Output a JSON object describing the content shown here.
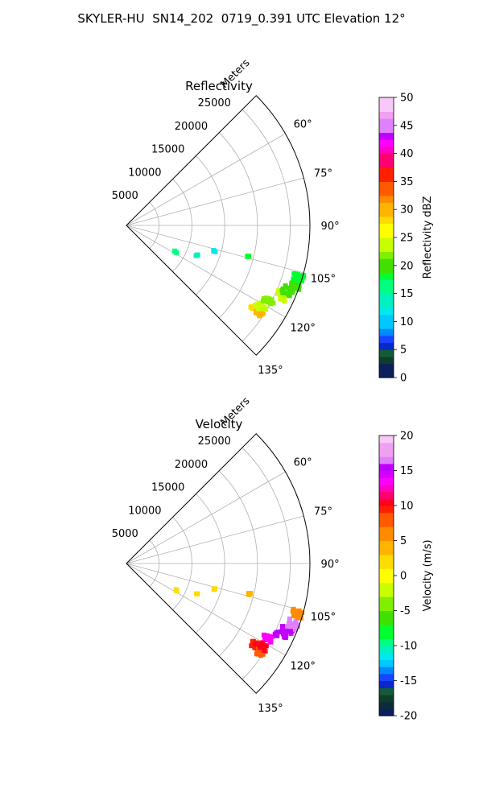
{
  "title": "SKYLER-HU  SN14_202  0719_0.391 UTC Elevation 12°",
  "chart_data": [
    {
      "type": "polar-sector",
      "title": "Reflectivity",
      "radial_label": "Meters",
      "radial_ticks": [
        "5000",
        "10000",
        "15000",
        "20000",
        "25000"
      ],
      "angle_ticks": [
        "60°",
        "75°",
        "90°",
        "105°",
        "120°",
        "135°"
      ],
      "azimuth_range": [
        45,
        135
      ],
      "range_max": 28000,
      "colorbar": {
        "label": "Reflectivity dBZ",
        "min": 0,
        "max": 50,
        "ticks": [
          "0",
          "5",
          "10",
          "15",
          "20",
          "25",
          "30",
          "35",
          "40",
          "45",
          "50"
        ]
      },
      "echoes": [
        {
          "az": 122.5,
          "r": 23500,
          "value": 27
        },
        {
          "az": 123.5,
          "r": 24500,
          "value": 29
        },
        {
          "az": 121.0,
          "r": 24000,
          "value": 24
        },
        {
          "az": 118.0,
          "r": 24500,
          "value": 22
        },
        {
          "az": 114.5,
          "r": 26000,
          "value": 23
        },
        {
          "az": 112.0,
          "r": 26500,
          "value": 20
        },
        {
          "az": 110.0,
          "r": 27200,
          "value": 19
        },
        {
          "az": 106.5,
          "r": 27300,
          "value": 17
        },
        {
          "az": 104.0,
          "r": 19300,
          "value": 17
        },
        {
          "az": 106.0,
          "r": 14000,
          "value": 12
        },
        {
          "az": 113.0,
          "r": 11800,
          "value": 13
        },
        {
          "az": 118.0,
          "r": 8500,
          "value": 16
        }
      ]
    },
    {
      "type": "polar-sector",
      "title": "Velocity",
      "radial_label": "Meters",
      "radial_ticks": [
        "5000",
        "10000",
        "15000",
        "20000",
        "25000"
      ],
      "angle_ticks": [
        "60°",
        "75°",
        "90°",
        "105°",
        "120°",
        "135°"
      ],
      "azimuth_range": [
        45,
        135
      ],
      "range_max": 28000,
      "colorbar": {
        "label": "Velocity (m/s)",
        "min": -20,
        "max": 20,
        "ticks": [
          "-20",
          "-15",
          "-10",
          "-5",
          "0",
          "5",
          "10",
          "15",
          "20"
        ]
      },
      "echoes": [
        {
          "az": 122.5,
          "r": 23500,
          "value": 9
        },
        {
          "az": 123.5,
          "r": 24500,
          "value": 8
        },
        {
          "az": 121.0,
          "r": 24000,
          "value": 10
        },
        {
          "az": 118.0,
          "r": 24500,
          "value": 13
        },
        {
          "az": 114.5,
          "r": 26000,
          "value": 15
        },
        {
          "az": 112.0,
          "r": 26500,
          "value": 15
        },
        {
          "az": 110.0,
          "r": 27200,
          "value": 16
        },
        {
          "az": 106.5,
          "r": 27300,
          "value": 5
        },
        {
          "az": 104.0,
          "r": 19300,
          "value": 3
        },
        {
          "az": 106.0,
          "r": 14000,
          "value": 1
        },
        {
          "az": 113.0,
          "r": 11800,
          "value": 1
        },
        {
          "az": 118.0,
          "r": 8500,
          "value": 1
        }
      ]
    }
  ]
}
